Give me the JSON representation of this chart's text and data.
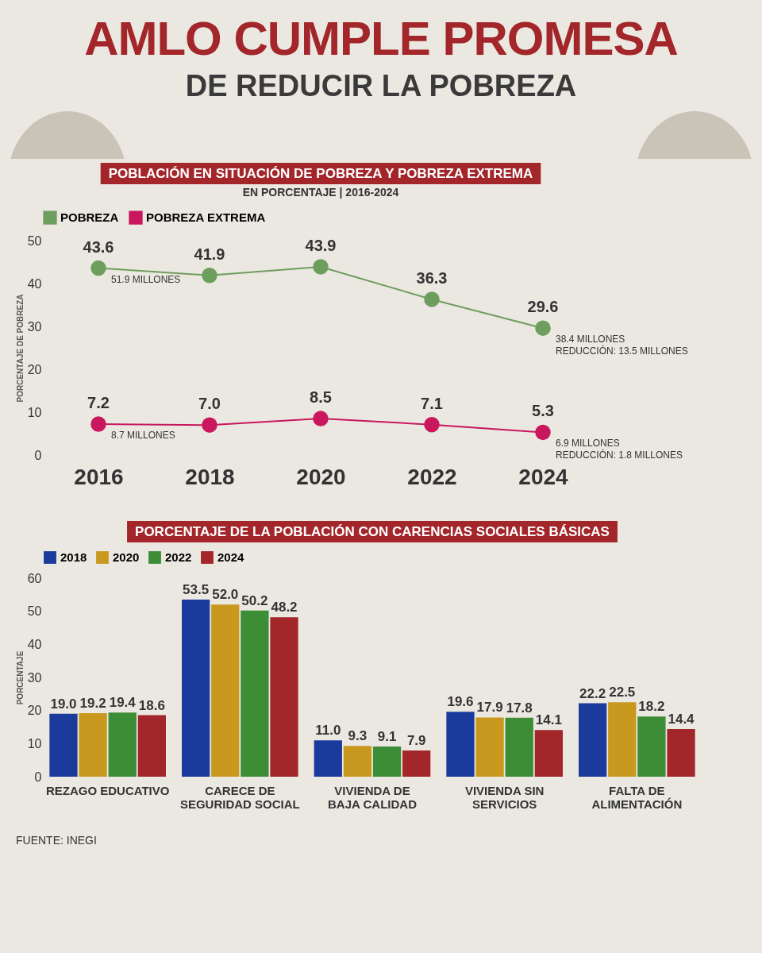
{
  "chart_data": [
    {
      "type": "line",
      "title": "POBLACIÓN EN SITUACIÓN DE POBREZA Y POBREZA EXTREMA",
      "subtitle": "EN PORCENTAJE | 2016-2024",
      "ylabel": "PORCENTAJE DE POBREZA",
      "categories": [
        "2016",
        "2018",
        "2020",
        "2022",
        "2024"
      ],
      "series": [
        {
          "name": "POBREZA",
          "color": "#6e9e5e",
          "values": [
            43.6,
            41.9,
            43.9,
            36.3,
            29.6
          ],
          "value_labels": [
            "43.6",
            "41.9",
            "43.9",
            "36.3",
            "29.6"
          ]
        },
        {
          "name": "POBREZA EXTREMA",
          "color": "#c8175d",
          "values": [
            7.2,
            7.0,
            8.5,
            7.1,
            5.3
          ],
          "value_labels": [
            "7.2",
            "7.0",
            "8.5",
            "7.1",
            "5.3"
          ]
        }
      ],
      "ylim": [
        0,
        50
      ],
      "yticks": [
        0,
        10,
        20,
        30,
        40,
        50
      ],
      "grid": false,
      "legend": "top",
      "marker": "circle",
      "annotations": [
        "AMLO CUMPLE PROMESA",
        "DE REDUCIR LA POBREZA",
        {
          "text": "51.9 MILLONES",
          "x": "2016",
          "y": 43.6
        },
        {
          "text": "8.7 MILLONES",
          "x": "2016",
          "y": 7.2
        },
        {
          "text": "38.4 MILLONES",
          "x": "2024",
          "y": 29.6
        },
        {
          "text": "REDUCCIÓN: 13.5 MILLONES",
          "x": "2024",
          "y": 29.6
        },
        {
          "text": "6.9 MILLONES",
          "x": "2024",
          "y": 5.3
        },
        {
          "text": "REDUCCIÓN: 1.8 MILLONES",
          "x": "2024",
          "y": 5.3
        }
      ]
    },
    {
      "type": "bar",
      "title": "PORCENTAJE DE LA POBLACIÓN CON CARENCIAS SOCIALES BÁSICAS",
      "ylabel": "PORCENTAJE",
      "categories": [
        "REZAGO EDUCATIVO",
        "CARECE DE SEGURIDAD SOCIAL",
        "VIVIENDA DE BAJA CALIDAD",
        "VIVIENDA SIN SERVICIOS",
        "FALTA DE ALIMENTACIÓN"
      ],
      "series": [
        {
          "name": "2018",
          "color": "#1a3a9c",
          "values": [
            19.0,
            53.5,
            11.0,
            19.6,
            22.2
          ],
          "value_labels": [
            "19.0",
            "53.5",
            "11.0",
            "19.6",
            "22.2"
          ]
        },
        {
          "name": "2020",
          "color": "#c8991e",
          "values": [
            19.2,
            52.0,
            9.3,
            17.9,
            22.5
          ],
          "value_labels": [
            "19.2",
            "52.0",
            "9.3",
            "17.9",
            "22.5"
          ]
        },
        {
          "name": "2022",
          "color": "#3d8c36",
          "values": [
            19.4,
            50.2,
            9.1,
            17.8,
            18.2
          ],
          "value_labels": [
            "19.4",
            "50.2",
            "9.1",
            "17.8",
            "18.2"
          ]
        },
        {
          "name": "2024",
          "color": "#a3262a",
          "values": [
            18.6,
            48.2,
            7.9,
            14.1,
            14.4
          ],
          "value_labels": [
            "18.6",
            "48.2",
            "7.9",
            "14.1",
            "14.4"
          ]
        }
      ],
      "ylim": [
        0,
        60
      ],
      "yticks": [
        0,
        10,
        20,
        30,
        40,
        50,
        60
      ],
      "grid": false,
      "legend": "top",
      "annotations": [
        "FUENTE: INEGI"
      ]
    }
  ]
}
